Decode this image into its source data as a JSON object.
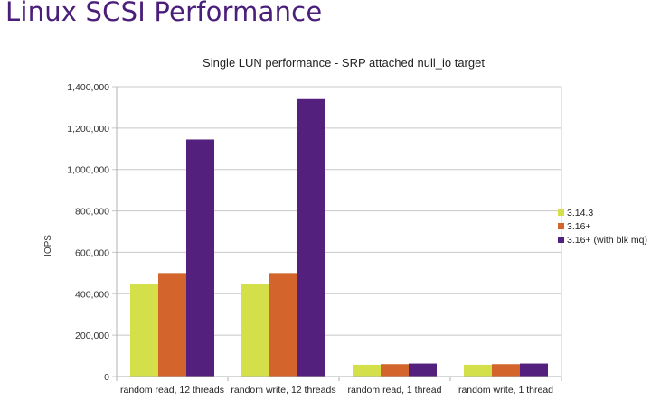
{
  "slide": {
    "title": "Linux SCSI Performance"
  },
  "colors": {
    "title": "#4a1f7a",
    "series": [
      "#d4e04a",
      "#d2642c",
      "#54207e"
    ],
    "grid": "#c8c8c8"
  },
  "chart_data": {
    "type": "bar",
    "title": "Single LUN performance - SRP attached null_io target",
    "xlabel": "",
    "ylabel": "IOPS",
    "ylim": [
      0,
      1400000
    ],
    "yticks": [
      0,
      200000,
      400000,
      600000,
      800000,
      1000000,
      1200000,
      1400000
    ],
    "ytick_labels": [
      "0",
      "200,000",
      "400,000",
      "600,000",
      "800,000",
      "1,000,000",
      "1,200,000",
      "1,400,000"
    ],
    "grid": true,
    "legend_position": "right",
    "categories": [
      "random read, 12 threads",
      "random write, 12 threads",
      "random read, 1 thread",
      "random write, 1 thread"
    ],
    "series": [
      {
        "name": "3.14.3",
        "values": [
          445000,
          445000,
          57000,
          57000
        ]
      },
      {
        "name": "3.16+",
        "values": [
          500000,
          500000,
          60000,
          60000
        ]
      },
      {
        "name": "3.16+ (with blk mq)",
        "values": [
          1145000,
          1340000,
          63000,
          63000
        ]
      }
    ]
  }
}
